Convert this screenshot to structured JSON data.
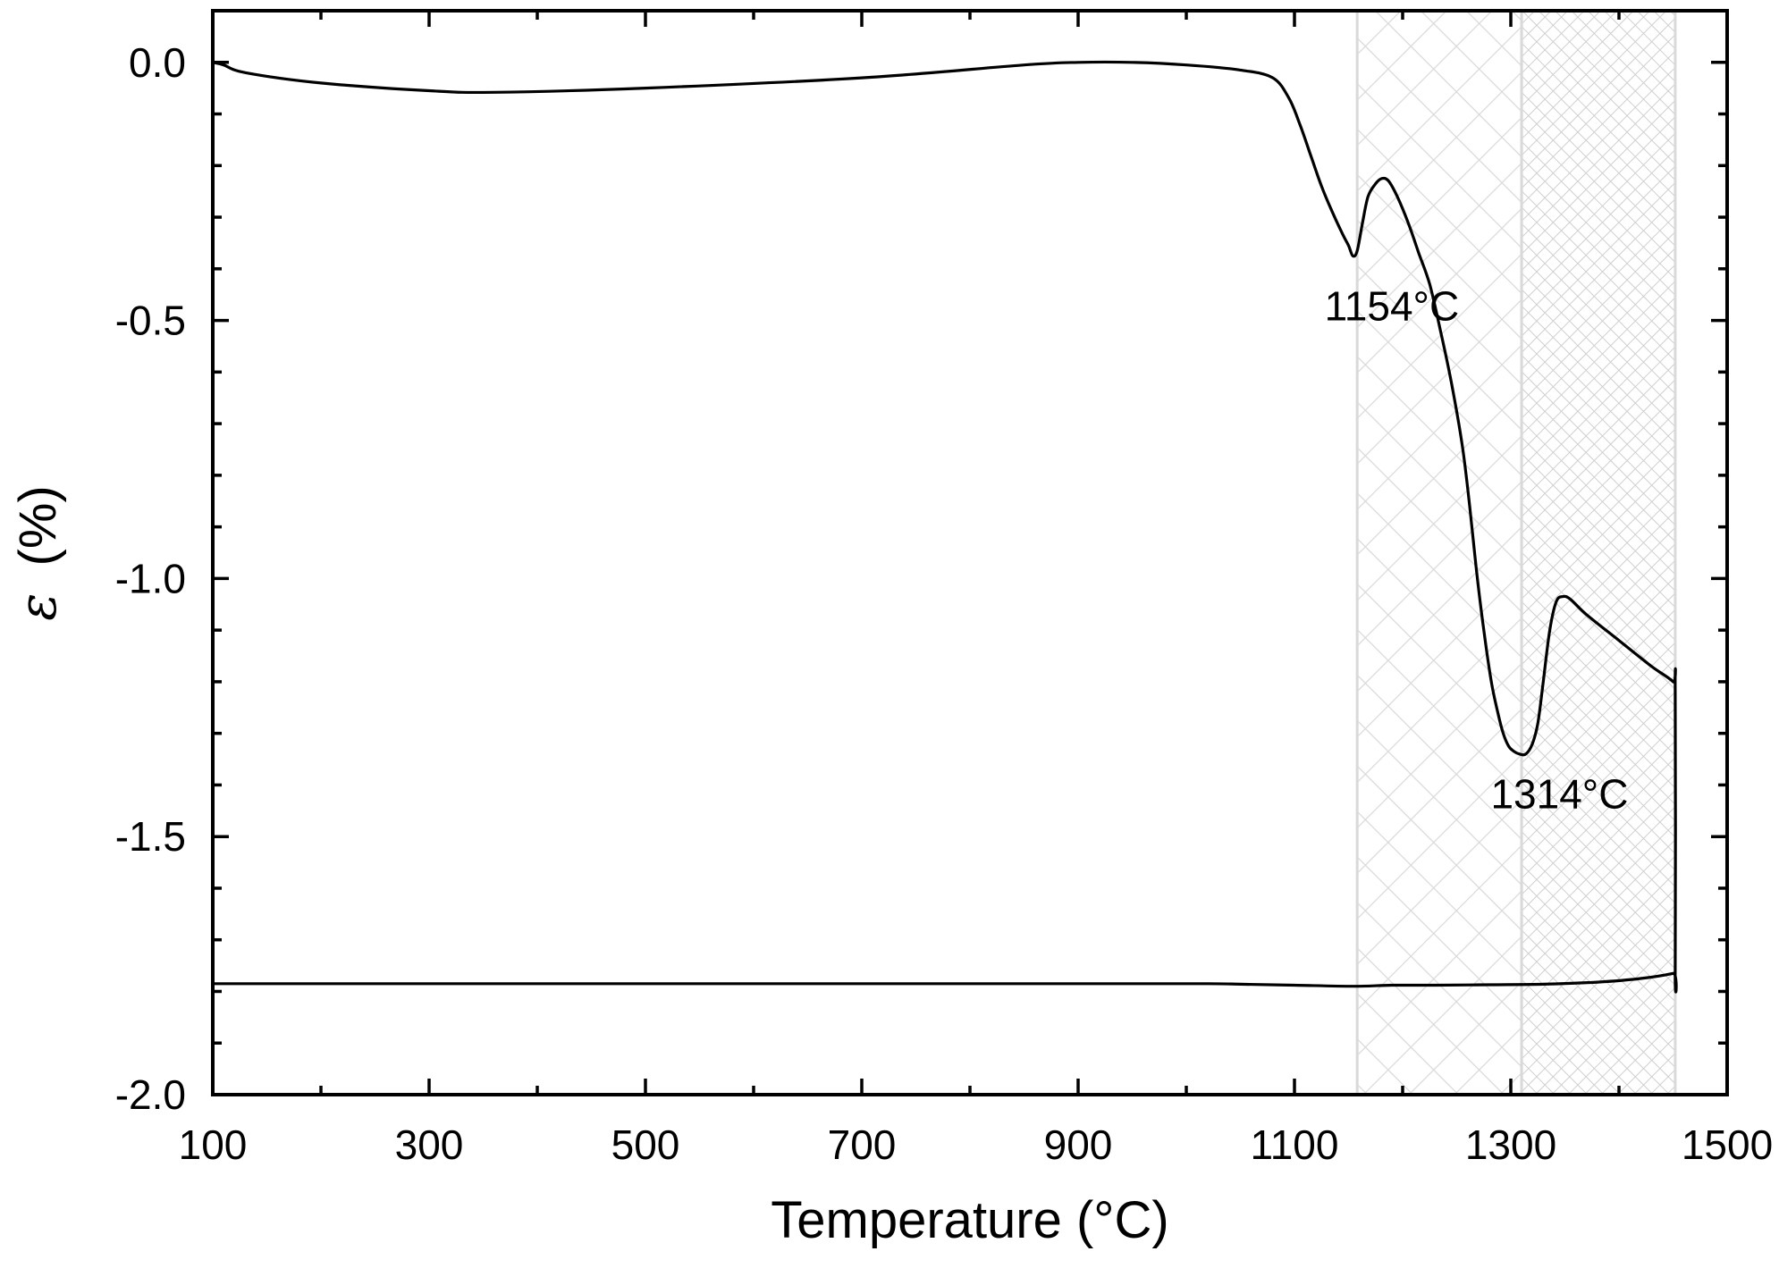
{
  "chart_data": {
    "type": "line",
    "xlabel": "Temperature (°C)",
    "ylabel_symbol": "ε",
    "ylabel_unit": "(%)",
    "xlim": [
      100,
      1500
    ],
    "ylim": [
      -2.0,
      0.1
    ],
    "xticks": [
      100,
      300,
      500,
      700,
      900,
      1100,
      1300,
      1500
    ],
    "xticks_minor": [
      200,
      400,
      600,
      800,
      1000,
      1200,
      1400
    ],
    "yticks": [
      0.0,
      -0.5,
      -1.0,
      -1.5,
      -2.0
    ],
    "yticks_minor": [
      0.1,
      -0.1,
      -0.2,
      -0.3,
      -0.4,
      -0.6,
      -0.7,
      -0.8,
      -0.9,
      -1.1,
      -1.2,
      -1.3,
      -1.4,
      -1.6,
      -1.7,
      -1.8,
      -1.9
    ],
    "xtick_labels": [
      "100",
      "300",
      "500",
      "700",
      "900",
      "1100",
      "1300",
      "1500"
    ],
    "ytick_labels": [
      "0.0",
      "-0.5",
      "-1.0",
      "-1.5",
      "-2.0"
    ],
    "grid": false,
    "line_color": "#000000",
    "shaded_regions": [
      {
        "x_start": 1158,
        "x_end": 1310,
        "pattern": "crosshatch",
        "color": "#d9d9d9"
      },
      {
        "x_start": 1310,
        "x_end": 1452,
        "pattern": "fine-crosshatch",
        "color": "#d9d9d9"
      }
    ],
    "series": [
      {
        "x": [
          100,
          110,
          130,
          200,
          300,
          360,
          500,
          700,
          850,
          900,
          950,
          1000,
          1050,
          1080,
          1095,
          1105,
          1115,
          1125,
          1135,
          1145,
          1150,
          1154,
          1158,
          1163,
          1168,
          1175,
          1181,
          1187,
          1195,
          1205,
          1215,
          1225,
          1235,
          1245,
          1255,
          1262,
          1268,
          1275,
          1282,
          1288,
          1293,
          1298,
          1303,
          1308,
          1314,
          1320,
          1325,
          1330,
          1336,
          1342,
          1348,
          1355,
          1370,
          1400,
          1430,
          1450,
          1452,
          1452,
          1450,
          1420,
          1380,
          1330,
          1280,
          1230,
          1190,
          1155,
          1100,
          1050,
          1020,
          900,
          700,
          500,
          300,
          100
        ],
        "y": [
          0.0,
          -0.005,
          -0.02,
          -0.04,
          -0.055,
          -0.058,
          -0.05,
          -0.03,
          -0.005,
          0.0,
          0.0,
          -0.005,
          -0.015,
          -0.03,
          -0.07,
          -0.12,
          -0.18,
          -0.24,
          -0.29,
          -0.335,
          -0.355,
          -0.375,
          -0.365,
          -0.31,
          -0.26,
          -0.235,
          -0.225,
          -0.23,
          -0.26,
          -0.31,
          -0.37,
          -0.43,
          -0.52,
          -0.62,
          -0.74,
          -0.86,
          -0.98,
          -1.1,
          -1.2,
          -1.26,
          -1.3,
          -1.325,
          -1.335,
          -1.34,
          -1.34,
          -1.32,
          -1.28,
          -1.2,
          -1.1,
          -1.045,
          -1.035,
          -1.04,
          -1.07,
          -1.12,
          -1.17,
          -1.2,
          -1.22,
          -1.76,
          -1.765,
          -1.775,
          -1.782,
          -1.786,
          -1.787,
          -1.788,
          -1.788,
          -1.79,
          -1.788,
          -1.786,
          -1.785,
          -1.785,
          -1.785,
          -1.785,
          -1.785,
          -1.785
        ]
      }
    ],
    "annotations": [
      {
        "text": "1154°C",
        "x": 1190,
        "y": -0.5
      },
      {
        "text": "1314°C",
        "x": 1345,
        "y": -1.445
      }
    ]
  }
}
